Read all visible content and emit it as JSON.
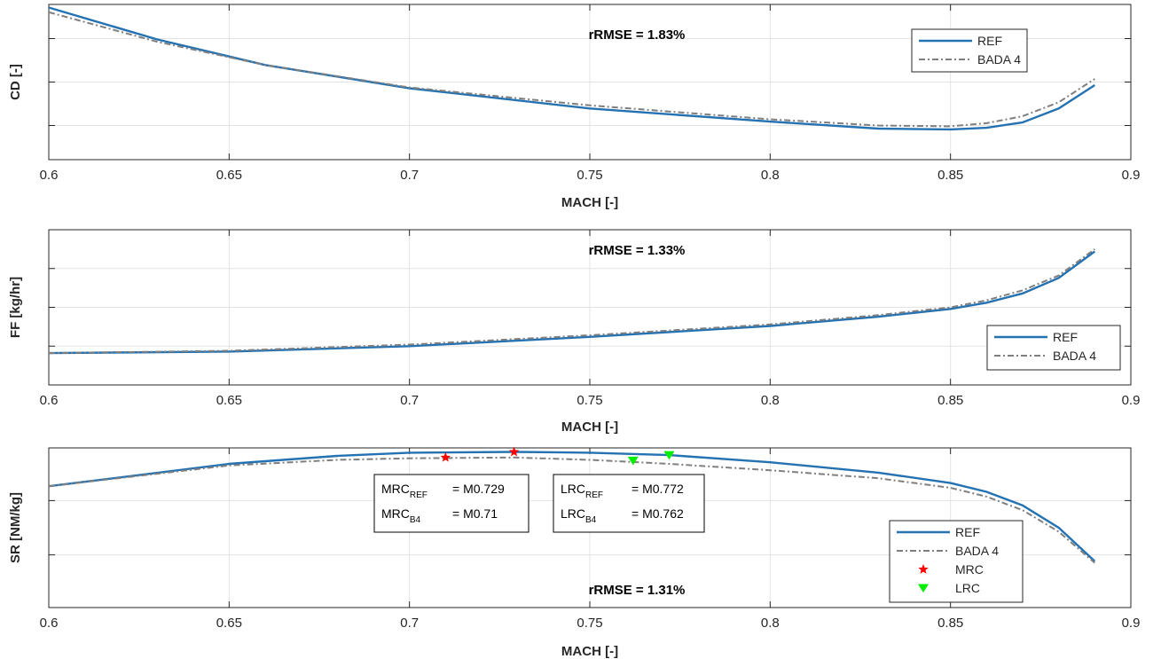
{
  "colors": {
    "ref": "#2472b2",
    "bada": "#7f7f7f",
    "mrc": "#ff0000",
    "lrc": "#00ee00",
    "grid": "#e3e3e3",
    "axis": "#262626"
  },
  "chart_data": [
    {
      "type": "line",
      "id": "cd",
      "xlabel": "MACH [-]",
      "ylabel": "CD [-]",
      "xlim": [
        0.6,
        0.9
      ],
      "ylim": [
        0,
        100
      ],
      "xticks": [
        0.6,
        0.65,
        0.7,
        0.75,
        0.8,
        0.85,
        0.9
      ],
      "xtick_labels": [
        "0.6",
        "0.65",
        "0.7",
        "0.75",
        "0.8",
        "0.85",
        "0.9"
      ],
      "yticks": [
        22,
        50,
        78
      ],
      "grid": true,
      "annotation": "rRMSE = 1.83%",
      "legend": {
        "position": "top-right",
        "entries": [
          "REF",
          "BADA 4"
        ]
      },
      "x": [
        0.6,
        0.63,
        0.66,
        0.7,
        0.75,
        0.8,
        0.83,
        0.85,
        0.86,
        0.87,
        0.88,
        0.89
      ],
      "series": [
        {
          "name": "REF",
          "values": [
            98,
            77.5,
            61,
            46,
            33,
            24.5,
            20,
            19.5,
            20.5,
            24,
            33,
            48
          ]
        },
        {
          "name": "BADA 4",
          "values": [
            95,
            76,
            61,
            46.5,
            35,
            26,
            22,
            21.5,
            23.5,
            28,
            37,
            52
          ]
        }
      ]
    },
    {
      "type": "line",
      "id": "ff",
      "xlabel": "MACH [-]",
      "ylabel": "FF [kg/hr]",
      "xlim": [
        0.6,
        0.9
      ],
      "ylim": [
        0,
        100
      ],
      "xticks": [
        0.6,
        0.65,
        0.7,
        0.75,
        0.8,
        0.85,
        0.9
      ],
      "xtick_labels": [
        "0.6",
        "0.65",
        "0.7",
        "0.75",
        "0.8",
        "0.85",
        "0.9"
      ],
      "yticks": [
        25,
        50,
        75
      ],
      "grid": true,
      "annotation": "rRMSE = 1.33%",
      "legend": {
        "position": "bottom-right",
        "entries": [
          "REF",
          "BADA 4"
        ]
      },
      "x": [
        0.6,
        0.65,
        0.7,
        0.75,
        0.8,
        0.83,
        0.85,
        0.86,
        0.87,
        0.88,
        0.89
      ],
      "series": [
        {
          "name": "REF",
          "values": [
            20.5,
            21.5,
            25,
            31,
            38,
            44,
            49,
            53,
            59,
            69,
            86
          ]
        },
        {
          "name": "BADA 4",
          "values": [
            20.5,
            22,
            26,
            32,
            39,
            45,
            50,
            54.5,
            61,
            70.5,
            87.5
          ]
        }
      ]
    },
    {
      "type": "line",
      "id": "sr",
      "xlabel": "MACH [-]",
      "ylabel": "SR [NM/kg]",
      "xlim": [
        0.6,
        0.9
      ],
      "ylim": [
        0,
        100
      ],
      "xticks": [
        0.6,
        0.65,
        0.7,
        0.75,
        0.8,
        0.85,
        0.9
      ],
      "xtick_labels": [
        "0.6",
        "0.65",
        "0.7",
        "0.75",
        "0.8",
        "0.85",
        "0.9"
      ],
      "yticks": [
        33,
        67
      ],
      "grid": true,
      "annotation": "rRMSE = 1.31%",
      "legend": {
        "position": "bottom-right",
        "entries": [
          "REF",
          "BADA 4",
          "MRC",
          "LRC"
        ]
      },
      "x": [
        0.6,
        0.65,
        0.68,
        0.7,
        0.729,
        0.75,
        0.772,
        0.8,
        0.83,
        0.85,
        0.86,
        0.87,
        0.88,
        0.89
      ],
      "series": [
        {
          "name": "REF",
          "values": [
            76,
            90,
            95,
            97,
            97.5,
            97,
            95.5,
            91,
            84.5,
            78,
            72.5,
            64,
            50,
            29
          ]
        },
        {
          "name": "BADA 4",
          "values": [
            76,
            89,
            92.5,
            93.5,
            94,
            92.5,
            90,
            86,
            81,
            75,
            69.5,
            61,
            47.5,
            28
          ]
        }
      ],
      "markers": [
        {
          "name": "MRC",
          "shape": "star",
          "x": 0.729,
          "y": 97.5
        },
        {
          "name": "MRC",
          "shape": "star",
          "x": 0.71,
          "y": 94
        },
        {
          "name": "LRC",
          "shape": "triangle-down",
          "x": 0.772,
          "y": 95.5
        },
        {
          "name": "LRC",
          "shape": "triangle-down",
          "x": 0.762,
          "y": 92
        }
      ],
      "textboxes": [
        {
          "id": "mrc-box",
          "lines": [
            {
              "base": "MRC",
              "sub": "REF",
              "value": "= M0.729"
            },
            {
              "base": "MRC",
              "sub": "B4",
              "value": "= M0.71"
            }
          ]
        },
        {
          "id": "lrc-box",
          "lines": [
            {
              "base": "LRC",
              "sub": "REF",
              "value": "= M0.772"
            },
            {
              "base": "LRC",
              "sub": "B4",
              "value": "= M0.762"
            }
          ]
        }
      ]
    }
  ]
}
